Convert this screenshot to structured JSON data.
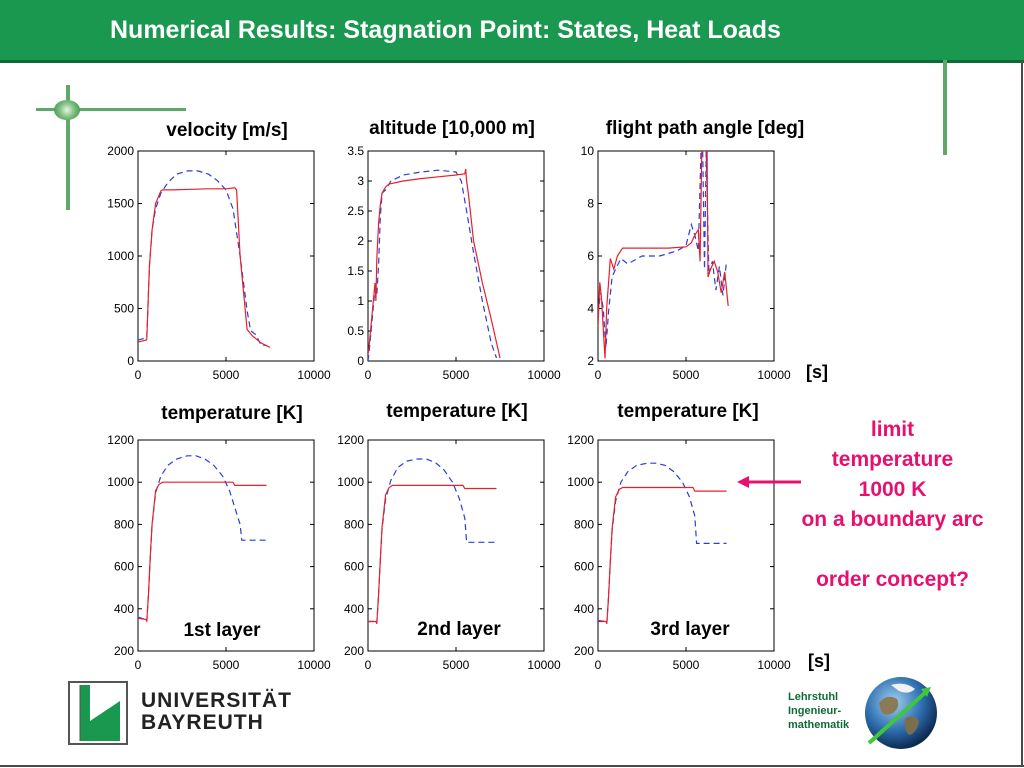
{
  "slide": {
    "title": "Numerical Results: Stagnation Point: States, Heat Loads"
  },
  "colors": {
    "title_bar": "#1a9850",
    "accent": "#e8106e",
    "series_solid": "#e8202a",
    "series_dashed": "#2a3fd8"
  },
  "units": {
    "top": "[s]",
    "bottom": "[s]"
  },
  "annotation": {
    "lines": [
      "limit",
      "temperature",
      "1000 K",
      "on a boundary arc"
    ],
    "question": "order concept?"
  },
  "logo": {
    "line1": "UNIVERSITÄT",
    "line2": "BAYREUTH"
  },
  "chair": {
    "line1": "Lehrstuhl",
    "line2": "Ingenieur-",
    "line3": "mathematik"
  },
  "chart_data": [
    {
      "type": "line",
      "title": "velocity [m/s]",
      "label": "",
      "xlim": [
        0,
        10000
      ],
      "ylim": [
        0,
        2000
      ],
      "xticks": [
        "0",
        "5000",
        "10000"
      ],
      "yticks": [
        "0",
        "500",
        "1000",
        "1500",
        "2000"
      ],
      "series": [
        {
          "style": "dashed",
          "x": [
            0,
            480,
            500,
            560,
            650,
            800,
            1000,
            1300,
            1700,
            2200,
            2800,
            3400,
            4000,
            4500,
            5000,
            5400,
            5800,
            6200,
            6400,
            6700,
            7000,
            7300
          ],
          "y": [
            200,
            220,
            230,
            500,
            900,
            1250,
            1450,
            1600,
            1700,
            1780,
            1810,
            1810,
            1780,
            1720,
            1630,
            1450,
            1000,
            480,
            290,
            250,
            150,
            150
          ]
        },
        {
          "style": "solid",
          "x": [
            0,
            480,
            500,
            560,
            650,
            800,
            1000,
            1300,
            1400,
            2000,
            3000,
            4000,
            5000,
            5500,
            5600,
            5800,
            6200,
            6500,
            7000,
            7500
          ],
          "y": [
            180,
            200,
            210,
            500,
            900,
            1250,
            1500,
            1620,
            1630,
            1630,
            1635,
            1640,
            1640,
            1650,
            1630,
            1000,
            300,
            240,
            170,
            130
          ]
        }
      ]
    },
    {
      "type": "line",
      "title": "altitude [10,000 m]",
      "label": "",
      "xlim": [
        0,
        10000
      ],
      "ylim": [
        0,
        3.5
      ],
      "xticks": [
        "0",
        "5000",
        "10000"
      ],
      "yticks": [
        "0",
        "0.5",
        "1",
        "1.5",
        "2",
        "2.5",
        "3",
        "3.5"
      ],
      "series": [
        {
          "style": "dashed",
          "x": [
            0,
            80,
            300,
            400,
            500,
            600,
            700,
            800,
            1000,
            1300,
            2000,
            3000,
            4000,
            5000,
            5300,
            5600,
            6000,
            6500,
            7000,
            7300
          ],
          "y": [
            0,
            0.2,
            0.9,
            1.2,
            1.1,
            1.6,
            2.4,
            2.8,
            2.85,
            3.0,
            3.1,
            3.15,
            3.18,
            3.15,
            3.0,
            2.5,
            1.8,
            1.0,
            0.3,
            0.05
          ]
        },
        {
          "style": "solid",
          "x": [
            0,
            80,
            300,
            400,
            450,
            500,
            600,
            700,
            800,
            1000,
            1200,
            2000,
            3000,
            4000,
            5000,
            5500,
            5550,
            5600,
            5700,
            6000,
            6500,
            7000,
            7500
          ],
          "y": [
            0.1,
            0.3,
            1.0,
            1.3,
            1.0,
            1.7,
            2.3,
            2.6,
            2.8,
            2.9,
            2.95,
            3.0,
            3.04,
            3.07,
            3.1,
            3.12,
            3.2,
            3.0,
            2.8,
            2.0,
            1.3,
            0.7,
            0.05
          ]
        }
      ]
    },
    {
      "type": "line",
      "title": "flight path angle [deg]",
      "label": "",
      "xlim": [
        0,
        10000
      ],
      "ylim": [
        2,
        10
      ],
      "xticks": [
        "0",
        "5000",
        "10000"
      ],
      "yticks": [
        "2",
        "4",
        "6",
        "8",
        "10"
      ],
      "series": [
        {
          "style": "dashed",
          "x": [
            0,
            150,
            300,
            450,
            600,
            800,
            1000,
            1300,
            1700,
            2500,
            3500,
            4500,
            5000,
            5300,
            5500,
            5700,
            5850,
            5950,
            6050,
            6150,
            6300,
            6500,
            6700,
            6900,
            7100,
            7300
          ],
          "y": [
            3.8,
            4.6,
            4.0,
            2.5,
            3.9,
            5.2,
            5.5,
            5.9,
            5.7,
            6.0,
            6.0,
            6.2,
            6.4,
            7.2,
            6.8,
            6.2,
            10,
            10,
            5.5,
            10,
            5.3,
            5.8,
            4.7,
            5.6,
            4.5,
            5.8
          ]
        },
        {
          "style": "solid",
          "x": [
            0,
            100,
            200,
            300,
            400,
            500,
            600,
            700,
            900,
            1100,
            1400,
            2000,
            3000,
            4000,
            5000,
            5300,
            5500,
            5700,
            5800,
            5900,
            6000,
            6100,
            6200,
            6250,
            6400,
            6600,
            6800,
            7000,
            7200,
            7400
          ],
          "y": [
            3.3,
            5.0,
            4.4,
            3.2,
            2.1,
            4.1,
            5.0,
            5.9,
            5.5,
            6.0,
            6.3,
            6.3,
            6.3,
            6.3,
            6.35,
            6.5,
            6.8,
            7.0,
            5.8,
            10,
            10,
            10,
            10,
            5.2,
            5.5,
            5.8,
            5.4,
            4.6,
            5.4,
            4.1
          ]
        }
      ]
    },
    {
      "type": "line",
      "title": "temperature [K]",
      "label": "1st layer",
      "xlim": [
        0,
        10000
      ],
      "ylim": [
        200,
        1200
      ],
      "xticks": [
        "0",
        "5000",
        "10000"
      ],
      "yticks": [
        "200",
        "400",
        "600",
        "800",
        "1000",
        "1200"
      ],
      "series": [
        {
          "style": "dashed",
          "x": [
            0,
            450,
            500,
            600,
            700,
            800,
            1000,
            1300,
            1700,
            2200,
            2800,
            3300,
            3800,
            4300,
            4800,
            5200,
            5500,
            5800,
            5900,
            6000,
            7300
          ],
          "y": [
            360,
            350,
            340,
            480,
            650,
            800,
            950,
            1030,
            1080,
            1110,
            1125,
            1125,
            1110,
            1080,
            1030,
            960,
            880,
            800,
            725,
            725,
            725
          ]
        },
        {
          "style": "solid",
          "x": [
            0,
            450,
            500,
            600,
            700,
            800,
            1000,
            1200,
            1400,
            2000,
            3000,
            4000,
            5000,
            5400,
            5500,
            6000,
            7300
          ],
          "y": [
            355,
            350,
            340,
            480,
            650,
            800,
            960,
            990,
            1000,
            1000,
            1000,
            1000,
            1000,
            1000,
            985,
            985,
            985
          ]
        }
      ]
    },
    {
      "type": "line",
      "title": "temperature [K]",
      "label": "2nd layer",
      "xlim": [
        0,
        10000
      ],
      "ylim": [
        200,
        1200
      ],
      "xticks": [
        "0",
        "5000",
        "10000"
      ],
      "yticks": [
        "200",
        "400",
        "600",
        "800",
        "1000",
        "1200"
      ],
      "series": [
        {
          "style": "dashed",
          "x": [
            0,
            450,
            500,
            600,
            700,
            800,
            1000,
            1300,
            1700,
            2200,
            2800,
            3300,
            3800,
            4300,
            4800,
            5200,
            5500,
            5600,
            7300
          ],
          "y": [
            340,
            340,
            330,
            470,
            630,
            780,
            920,
            1010,
            1070,
            1100,
            1110,
            1110,
            1095,
            1060,
            1000,
            920,
            830,
            715,
            715
          ]
        },
        {
          "style": "solid",
          "x": [
            0,
            450,
            500,
            600,
            700,
            800,
            1000,
            1200,
            1400,
            2000,
            3000,
            4000,
            5000,
            5400,
            5500,
            6000,
            7300
          ],
          "y": [
            340,
            340,
            330,
            470,
            630,
            790,
            940,
            975,
            985,
            985,
            985,
            985,
            985,
            985,
            970,
            970,
            970
          ]
        }
      ]
    },
    {
      "type": "line",
      "title": "temperature [K]",
      "label": "3rd layer",
      "xlim": [
        0,
        10000
      ],
      "ylim": [
        200,
        1200
      ],
      "xticks": [
        "0",
        "5000",
        "10000"
      ],
      "yticks": [
        "200",
        "400",
        "600",
        "800",
        "1000",
        "1200"
      ],
      "series": [
        {
          "style": "dashed",
          "x": [
            0,
            450,
            500,
            600,
            700,
            800,
            1000,
            1300,
            1700,
            2200,
            2800,
            3300,
            3800,
            4300,
            4800,
            5200,
            5500,
            5600,
            7300
          ],
          "y": [
            340,
            340,
            330,
            460,
            620,
            770,
            910,
            1000,
            1050,
            1080,
            1090,
            1090,
            1080,
            1050,
            1000,
            930,
            840,
            710,
            710
          ]
        },
        {
          "style": "solid",
          "x": [
            0,
            450,
            500,
            600,
            700,
            800,
            1000,
            1200,
            1400,
            2000,
            3000,
            4000,
            5000,
            5400,
            5500,
            6000,
            7300
          ],
          "y": [
            345,
            340,
            330,
            460,
            620,
            780,
            930,
            965,
            975,
            975,
            975,
            975,
            975,
            975,
            958,
            958,
            958
          ]
        }
      ]
    }
  ]
}
